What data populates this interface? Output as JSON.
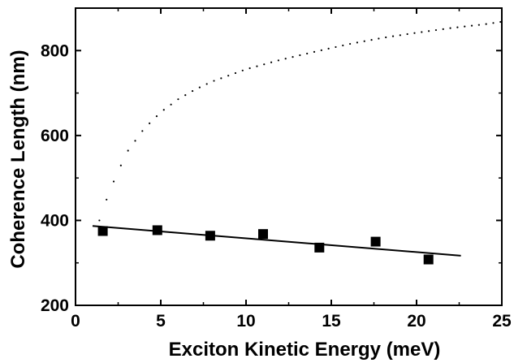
{
  "chart_data": {
    "type": "scatter",
    "xlabel": "Exciton Kinetic Energy (meV)",
    "ylabel": "Coherence Length (nm)",
    "xlim": [
      0,
      25
    ],
    "ylim": [
      200,
      900
    ],
    "x_ticks": [
      "0",
      "5",
      "10",
      "15",
      "20",
      "25"
    ],
    "y_ticks": [
      "200",
      "400",
      "600",
      "800"
    ],
    "grid": false,
    "legend": "none",
    "series": [
      {
        "kind": "markers",
        "marker": "square",
        "x": [
          1.6,
          4.8,
          7.9,
          11.0,
          14.3,
          17.6,
          20.7
        ],
        "y": [
          375,
          377,
          364,
          368,
          336,
          350,
          308
        ]
      },
      {
        "kind": "fit-line",
        "style": "solid",
        "x": [
          1.0,
          22.6
        ],
        "y": [
          387,
          317
        ]
      },
      {
        "kind": "curve",
        "style": "dotted",
        "x": [
          1.4,
          2.0,
          3.0,
          4.0,
          5.0,
          6.0,
          7.0,
          8.0,
          10.0,
          12.0,
          14.0,
          16.0,
          18.0,
          20.0,
          22.0,
          24.0,
          25.0
        ],
        "y": [
          400,
          470,
          560,
          615,
          655,
          685,
          708,
          727,
          756,
          778,
          797,
          815,
          830,
          842,
          853,
          862,
          868
        ]
      }
    ]
  }
}
